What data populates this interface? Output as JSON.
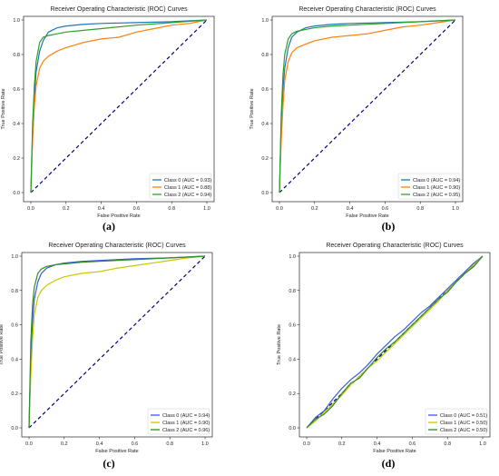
{
  "chart_data": [
    {
      "type": "line",
      "panel": "(a)",
      "title": "Receiver Operating Characteristic (ROC) Curves",
      "xlabel": "False Positive Rate",
      "ylabel": "True Positive Rate",
      "xlim": [
        0,
        1
      ],
      "ylim": [
        0,
        1
      ],
      "xticks": [
        "0.0",
        "0.2",
        "0.4",
        "0.6",
        "0.8",
        "1.0"
      ],
      "yticks": [
        "0.0",
        "0.2",
        "0.4",
        "0.6",
        "0.8",
        "1.0"
      ],
      "grid": false,
      "legend_position": "lower-right",
      "diagonal": {
        "style": "dashed",
        "color": "#000080"
      },
      "series": [
        {
          "name": "Class 0 (AUC = 0.93)",
          "color": "#1f77b4",
          "x": [
            0,
            0.01,
            0.02,
            0.03,
            0.05,
            0.07,
            0.1,
            0.15,
            0.2,
            0.3,
            0.4,
            0.6,
            0.8,
            1.0
          ],
          "y": [
            0,
            0.35,
            0.55,
            0.7,
            0.82,
            0.88,
            0.93,
            0.955,
            0.965,
            0.975,
            0.98,
            0.985,
            0.99,
            1.0
          ]
        },
        {
          "name": "Class 1 (AUC = 0.88)",
          "color": "#ff7f0e",
          "x": [
            0,
            0.01,
            0.02,
            0.03,
            0.05,
            0.07,
            0.1,
            0.15,
            0.2,
            0.3,
            0.4,
            0.5,
            0.6,
            0.7,
            0.8,
            0.9,
            1.0
          ],
          "y": [
            0,
            0.3,
            0.5,
            0.62,
            0.72,
            0.76,
            0.79,
            0.82,
            0.84,
            0.87,
            0.89,
            0.9,
            0.93,
            0.95,
            0.97,
            0.98,
            1.0
          ]
        },
        {
          "name": "Class 2 (AUC = 0.94)",
          "color": "#2ca02c",
          "x": [
            0,
            0.01,
            0.02,
            0.03,
            0.05,
            0.07,
            0.1,
            0.15,
            0.2,
            0.3,
            0.4,
            0.6,
            0.8,
            1.0
          ],
          "y": [
            0,
            0.4,
            0.62,
            0.76,
            0.87,
            0.9,
            0.91,
            0.92,
            0.93,
            0.94,
            0.95,
            0.97,
            0.985,
            1.0
          ]
        }
      ]
    },
    {
      "type": "line",
      "panel": "(b)",
      "title": "Receiver Operating Characteristic (ROC) Curves",
      "xlabel": "False Positive Rate",
      "ylabel": "True Positive Rate",
      "xlim": [
        0,
        1
      ],
      "ylim": [
        0,
        1
      ],
      "xticks": [
        "0.0",
        "0.2",
        "0.4",
        "0.6",
        "0.8",
        "1.0"
      ],
      "yticks": [
        "0.0",
        "0.2",
        "0.4",
        "0.6",
        "0.8",
        "1.0"
      ],
      "grid": false,
      "legend_position": "lower-right",
      "diagonal": {
        "style": "dashed",
        "color": "#000080"
      },
      "series": [
        {
          "name": "Class 0 (AUC = 0.94)",
          "color": "#1f77b4",
          "x": [
            0,
            0.01,
            0.02,
            0.03,
            0.05,
            0.07,
            0.1,
            0.15,
            0.2,
            0.3,
            0.4,
            0.6,
            0.8,
            1.0
          ],
          "y": [
            0,
            0.4,
            0.6,
            0.72,
            0.84,
            0.9,
            0.93,
            0.955,
            0.965,
            0.975,
            0.98,
            0.985,
            0.99,
            1.0
          ]
        },
        {
          "name": "Class 1 (AUC = 0.90)",
          "color": "#ff7f0e",
          "x": [
            0,
            0.01,
            0.02,
            0.03,
            0.05,
            0.07,
            0.1,
            0.15,
            0.2,
            0.3,
            0.4,
            0.5,
            0.6,
            0.7,
            0.8,
            0.9,
            1.0
          ],
          "y": [
            0,
            0.3,
            0.5,
            0.65,
            0.76,
            0.81,
            0.84,
            0.86,
            0.88,
            0.9,
            0.91,
            0.92,
            0.94,
            0.96,
            0.97,
            0.985,
            1.0
          ]
        },
        {
          "name": "Class 2 (AUC = 0.95)",
          "color": "#2ca02c",
          "x": [
            0,
            0.01,
            0.02,
            0.03,
            0.05,
            0.07,
            0.1,
            0.15,
            0.2,
            0.3,
            0.4,
            0.6,
            0.8,
            1.0
          ],
          "y": [
            0,
            0.45,
            0.68,
            0.8,
            0.89,
            0.92,
            0.935,
            0.945,
            0.955,
            0.965,
            0.97,
            0.98,
            0.99,
            1.0
          ]
        }
      ]
    },
    {
      "type": "line",
      "panel": "(c)",
      "title": "Receiver Operating Characteristic (ROC) Curves",
      "xlabel": "False Positive Rate",
      "ylabel": "True Positive Rate",
      "xlim": [
        0,
        1
      ],
      "ylim": [
        0,
        1
      ],
      "xticks": [
        "0.0",
        "0.2",
        "0.4",
        "0.6",
        "0.8",
        "1.0"
      ],
      "yticks": [
        "0.0",
        "0.2",
        "0.4",
        "0.6",
        "0.8",
        "1.0"
      ],
      "grid": false,
      "legend_position": "lower-right",
      "diagonal": {
        "style": "dashed",
        "color": "#000080"
      },
      "series": [
        {
          "name": "Class 0 (AUC = 0.94)",
          "color": "#3b5bdb",
          "x": [
            0,
            0.01,
            0.02,
            0.03,
            0.05,
            0.07,
            0.1,
            0.15,
            0.2,
            0.3,
            0.4,
            0.6,
            0.8,
            1.0
          ],
          "y": [
            0,
            0.4,
            0.62,
            0.75,
            0.85,
            0.9,
            0.93,
            0.95,
            0.96,
            0.97,
            0.975,
            0.985,
            0.99,
            1.0
          ]
        },
        {
          "name": "Class 1 (AUC = 0.90)",
          "color": "#c8c800",
          "x": [
            0,
            0.01,
            0.02,
            0.03,
            0.05,
            0.07,
            0.1,
            0.15,
            0.2,
            0.3,
            0.4,
            0.5,
            0.6,
            0.7,
            0.8,
            0.9,
            1.0
          ],
          "y": [
            0,
            0.3,
            0.52,
            0.66,
            0.76,
            0.8,
            0.83,
            0.86,
            0.88,
            0.9,
            0.91,
            0.93,
            0.945,
            0.96,
            0.975,
            0.99,
            1.0
          ]
        },
        {
          "name": "Class 2 (AUC = 0.96)",
          "color": "#2e8b2e",
          "x": [
            0,
            0.01,
            0.02,
            0.03,
            0.05,
            0.07,
            0.1,
            0.15,
            0.2,
            0.3,
            0.4,
            0.6,
            0.8,
            1.0
          ],
          "y": [
            0,
            0.5,
            0.72,
            0.82,
            0.9,
            0.925,
            0.94,
            0.95,
            0.955,
            0.965,
            0.97,
            0.98,
            0.99,
            1.0
          ]
        }
      ]
    },
    {
      "type": "line",
      "panel": "(d)",
      "title": "Receiver Operating Characteristic (ROC) Curves",
      "xlabel": "False Positive Rate",
      "ylabel": "True Positive Rate",
      "xlim": [
        0,
        1
      ],
      "ylim": [
        0,
        1
      ],
      "xticks": [
        "0.0",
        "0.2",
        "0.4",
        "0.6",
        "0.8",
        "1.0"
      ],
      "yticks": [
        "0.0",
        "0.2",
        "0.4",
        "0.6",
        "0.8",
        "1.0"
      ],
      "grid": false,
      "legend_position": "lower-right",
      "diagonal": {
        "style": "dashed",
        "color": "#000080"
      },
      "series": [
        {
          "name": "Class 0 (AUC = 0.51)",
          "color": "#3b5bdb",
          "x": [
            0,
            0.05,
            0.1,
            0.15,
            0.2,
            0.25,
            0.3,
            0.35,
            0.4,
            0.45,
            0.5,
            0.55,
            0.6,
            0.65,
            0.7,
            0.75,
            0.8,
            0.85,
            0.9,
            0.95,
            1.0
          ],
          "y": [
            0,
            0.06,
            0.1,
            0.17,
            0.23,
            0.28,
            0.32,
            0.37,
            0.43,
            0.48,
            0.53,
            0.57,
            0.62,
            0.67,
            0.71,
            0.76,
            0.81,
            0.86,
            0.91,
            0.96,
            1.0
          ]
        },
        {
          "name": "Class 1 (AUC = 0.50)",
          "color": "#c8c800",
          "x": [
            0,
            0.05,
            0.1,
            0.15,
            0.2,
            0.25,
            0.3,
            0.35,
            0.4,
            0.45,
            0.5,
            0.55,
            0.6,
            0.65,
            0.7,
            0.75,
            0.8,
            0.85,
            0.9,
            0.95,
            1.0
          ],
          "y": [
            0,
            0.04,
            0.09,
            0.14,
            0.19,
            0.25,
            0.3,
            0.35,
            0.39,
            0.44,
            0.49,
            0.54,
            0.59,
            0.64,
            0.69,
            0.74,
            0.8,
            0.85,
            0.9,
            0.95,
            1.0
          ]
        },
        {
          "name": "Class 2 (AUC = 0.50)",
          "color": "#2e8b2e",
          "x": [
            0,
            0.05,
            0.1,
            0.15,
            0.2,
            0.25,
            0.3,
            0.35,
            0.4,
            0.45,
            0.5,
            0.55,
            0.6,
            0.65,
            0.7,
            0.75,
            0.8,
            0.85,
            0.9,
            0.95,
            1.0
          ],
          "y": [
            0,
            0.05,
            0.08,
            0.13,
            0.2,
            0.26,
            0.29,
            0.35,
            0.41,
            0.46,
            0.5,
            0.55,
            0.6,
            0.65,
            0.7,
            0.75,
            0.79,
            0.85,
            0.9,
            0.94,
            1.0
          ]
        }
      ]
    }
  ]
}
